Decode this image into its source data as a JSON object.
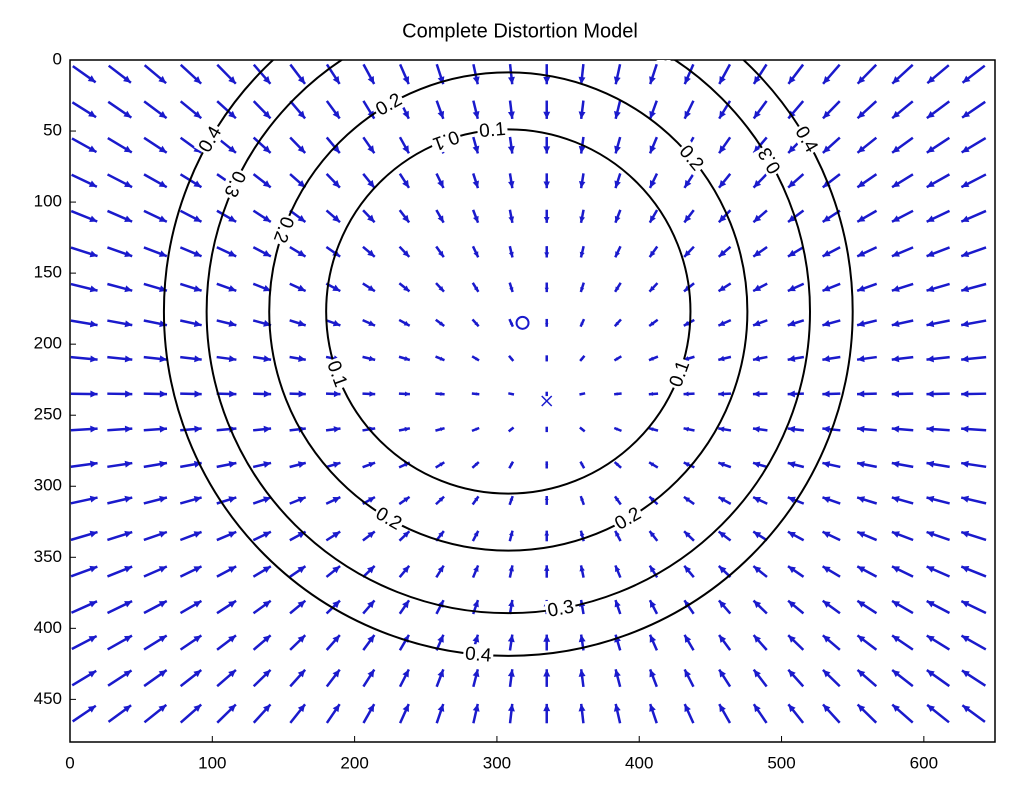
{
  "chart_data": {
    "type": "contour",
    "title": "Complete Distortion Model",
    "xlim": [
      0,
      650
    ],
    "ylim": [
      480,
      0
    ],
    "xticks": [
      0,
      100,
      200,
      300,
      400,
      500,
      600
    ],
    "yticks": [
      0,
      50,
      100,
      150,
      200,
      250,
      300,
      350,
      400,
      450
    ],
    "center": [
      308,
      177
    ],
    "contours": [
      {
        "level": 0.1,
        "radius": 128
      },
      {
        "level": 0.2,
        "radius": 168
      },
      {
        "level": 0.3,
        "radius": 212
      },
      {
        "level": 0.4,
        "radius": 242
      }
    ],
    "contour_color": "#000000",
    "quiver": {
      "color": "#1a1acc",
      "x": [
        10,
        35,
        60,
        85,
        110,
        135,
        160,
        185,
        210,
        235,
        260,
        285,
        310,
        335,
        360,
        385,
        410,
        435,
        460,
        485,
        510,
        535,
        560,
        585,
        610,
        635
      ],
      "y": [
        10,
        35,
        60,
        85,
        110,
        135,
        160,
        185,
        210,
        235,
        260,
        285,
        310,
        335,
        360,
        385,
        410,
        435,
        460
      ]
    },
    "principal_point": [
      318,
      185
    ],
    "image_center": [
      335,
      240
    ]
  }
}
